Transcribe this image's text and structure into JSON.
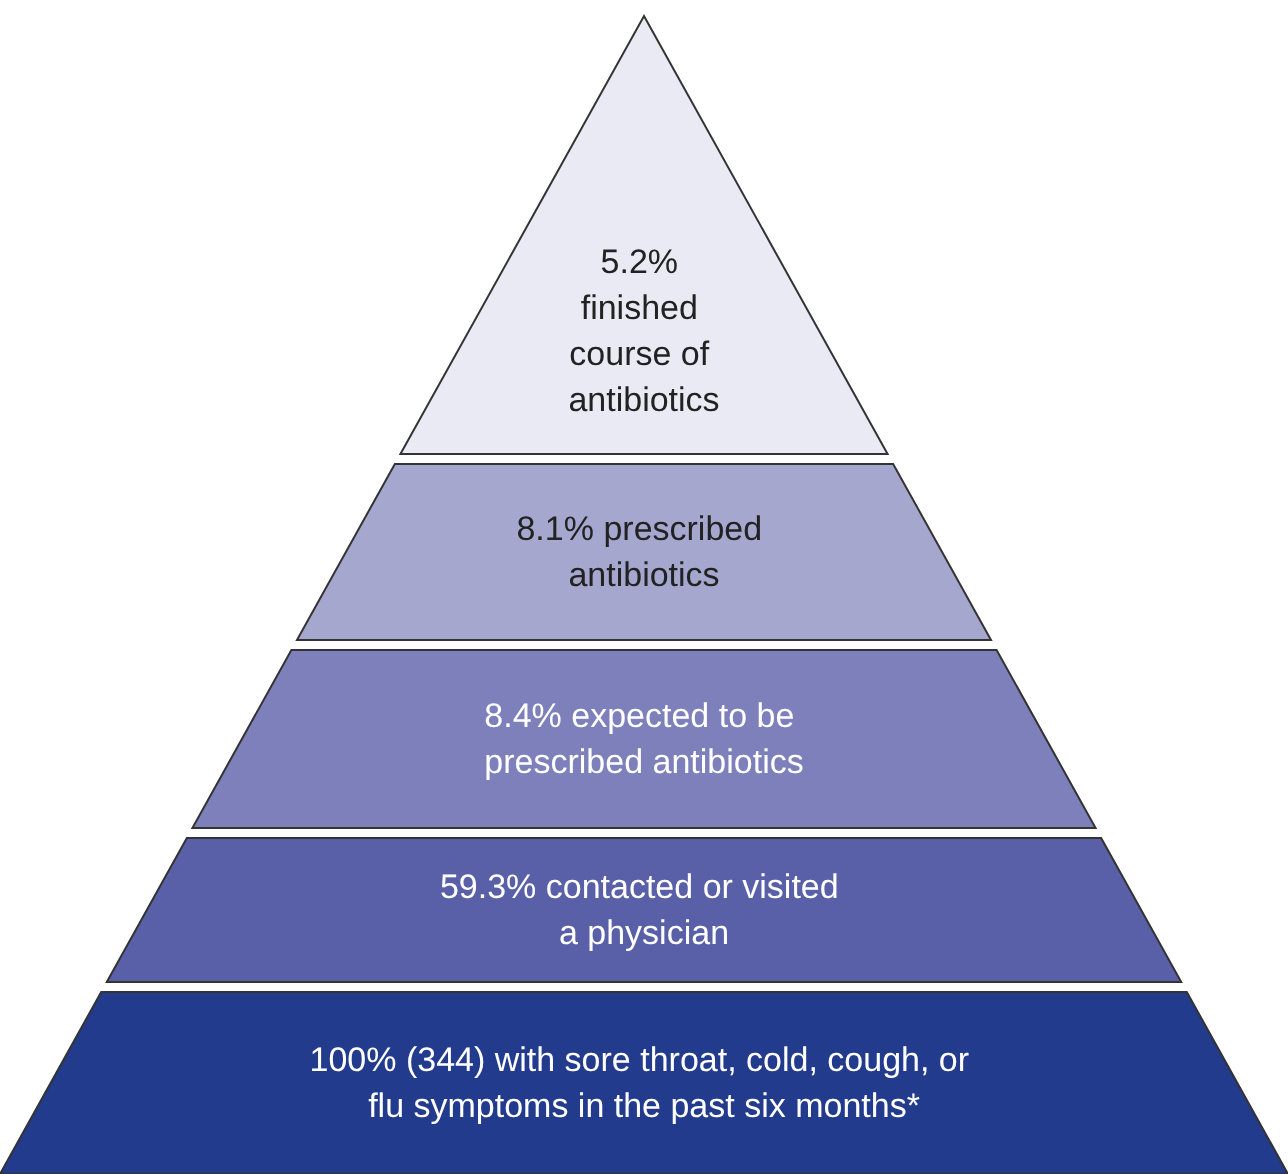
{
  "chart_data": {
    "type": "other",
    "categories": [
      "% finished course of antibiotics",
      "% prescribed antibiotics",
      "% expected to be prescribed antibiotics",
      "% contacted or visited a physician",
      "% (344) with sore throat, cold, cough, or flu symptoms in the past six months*"
    ],
    "values": [
      5.2,
      8.1,
      8.4,
      59.3,
      100
    ],
    "data_labels": true,
    "colors": [
      "#e9eaf4",
      "#a5a7cf",
      "#7d80bb",
      "#5a60a7",
      "#233b8d"
    ]
  }
}
